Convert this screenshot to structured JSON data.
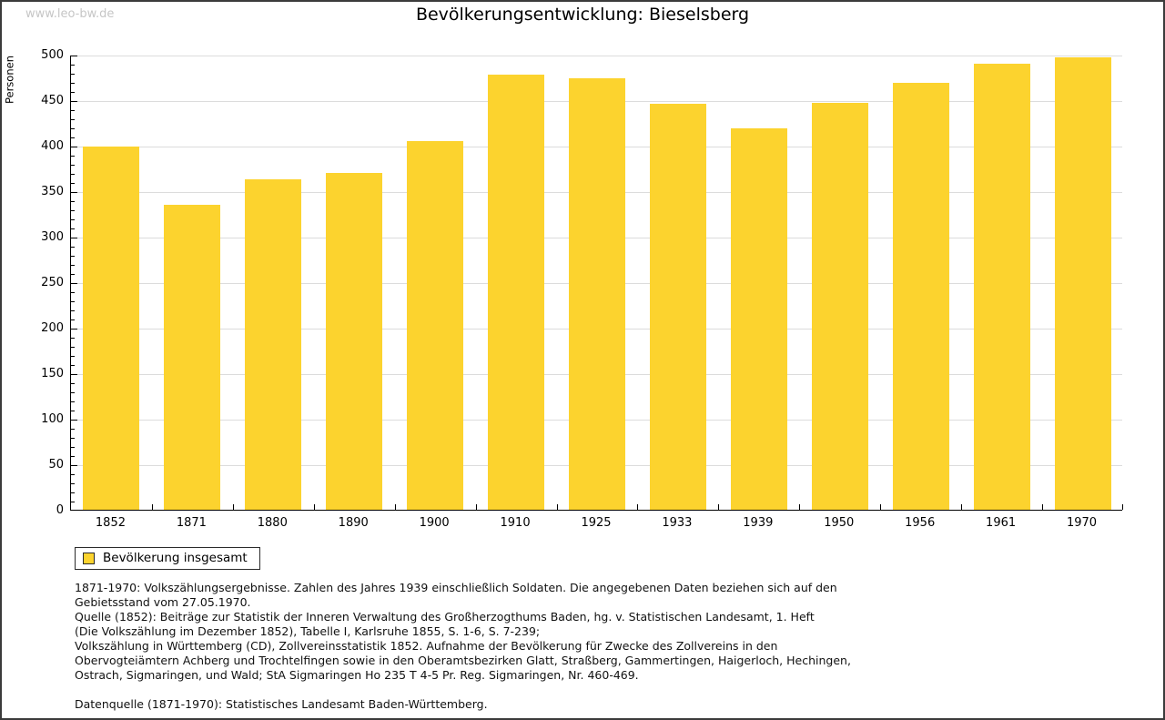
{
  "watermark": "www.leo-bw.de",
  "chart_data": {
    "type": "bar",
    "title": "Bevölkerungsentwicklung: Bieselsberg",
    "xlabel": "",
    "ylabel": "Personen",
    "categories": [
      "1852",
      "1871",
      "1880",
      "1890",
      "1900",
      "1910",
      "1925",
      "1933",
      "1939",
      "1950",
      "1956",
      "1961",
      "1970"
    ],
    "values": [
      399,
      335,
      363,
      370,
      405,
      478,
      474,
      446,
      419,
      447,
      469,
      490,
      497
    ],
    "ylim": [
      0,
      500
    ],
    "y_major_step": 50,
    "y_minor_step": 10,
    "grid": true,
    "legend": {
      "label": "Bevölkerung insgesamt",
      "position": "bottom-left"
    }
  },
  "colors": {
    "bar": "#FCD32E",
    "grid": "#DCDCDC",
    "axis": "#000000",
    "watermark": "#C6C6C6",
    "frame": "#3B3B3B"
  },
  "footnotes": {
    "lines": [
      "1871-1970: Volkszählungsergebnisse. Zahlen des Jahres 1939 einschließlich Soldaten. Die angegebenen Daten beziehen sich auf den",
      "Gebietsstand vom 27.05.1970.",
      "Quelle (1852): Beiträge zur Statistik der Inneren Verwaltung des Großherzogthums Baden, hg. v. Statistischen Landesamt, 1. Heft",
      "(Die Volkszählung im Dezember 1852), Tabelle I, Karlsruhe 1855, S. 1-6, S. 7-239;",
      "Volkszählung in Württemberg (CD), Zollvereinsstatistik 1852. Aufnahme der Bevölkerung für Zwecke des Zollvereins in den",
      "Obervogteiämtern Achberg und Trochtelfingen sowie in den Oberamtsbezirken Glatt, Straßberg, Gammertingen, Haigerloch, Hechingen,",
      "Ostrach, Sigmaringen, und Wald; StA Sigmaringen Ho 235 T 4-5 Pr. Reg. Sigmaringen, Nr. 460-469.",
      "",
      "Datenquelle (1871-1970): Statistisches Landesamt Baden-Württemberg."
    ]
  }
}
